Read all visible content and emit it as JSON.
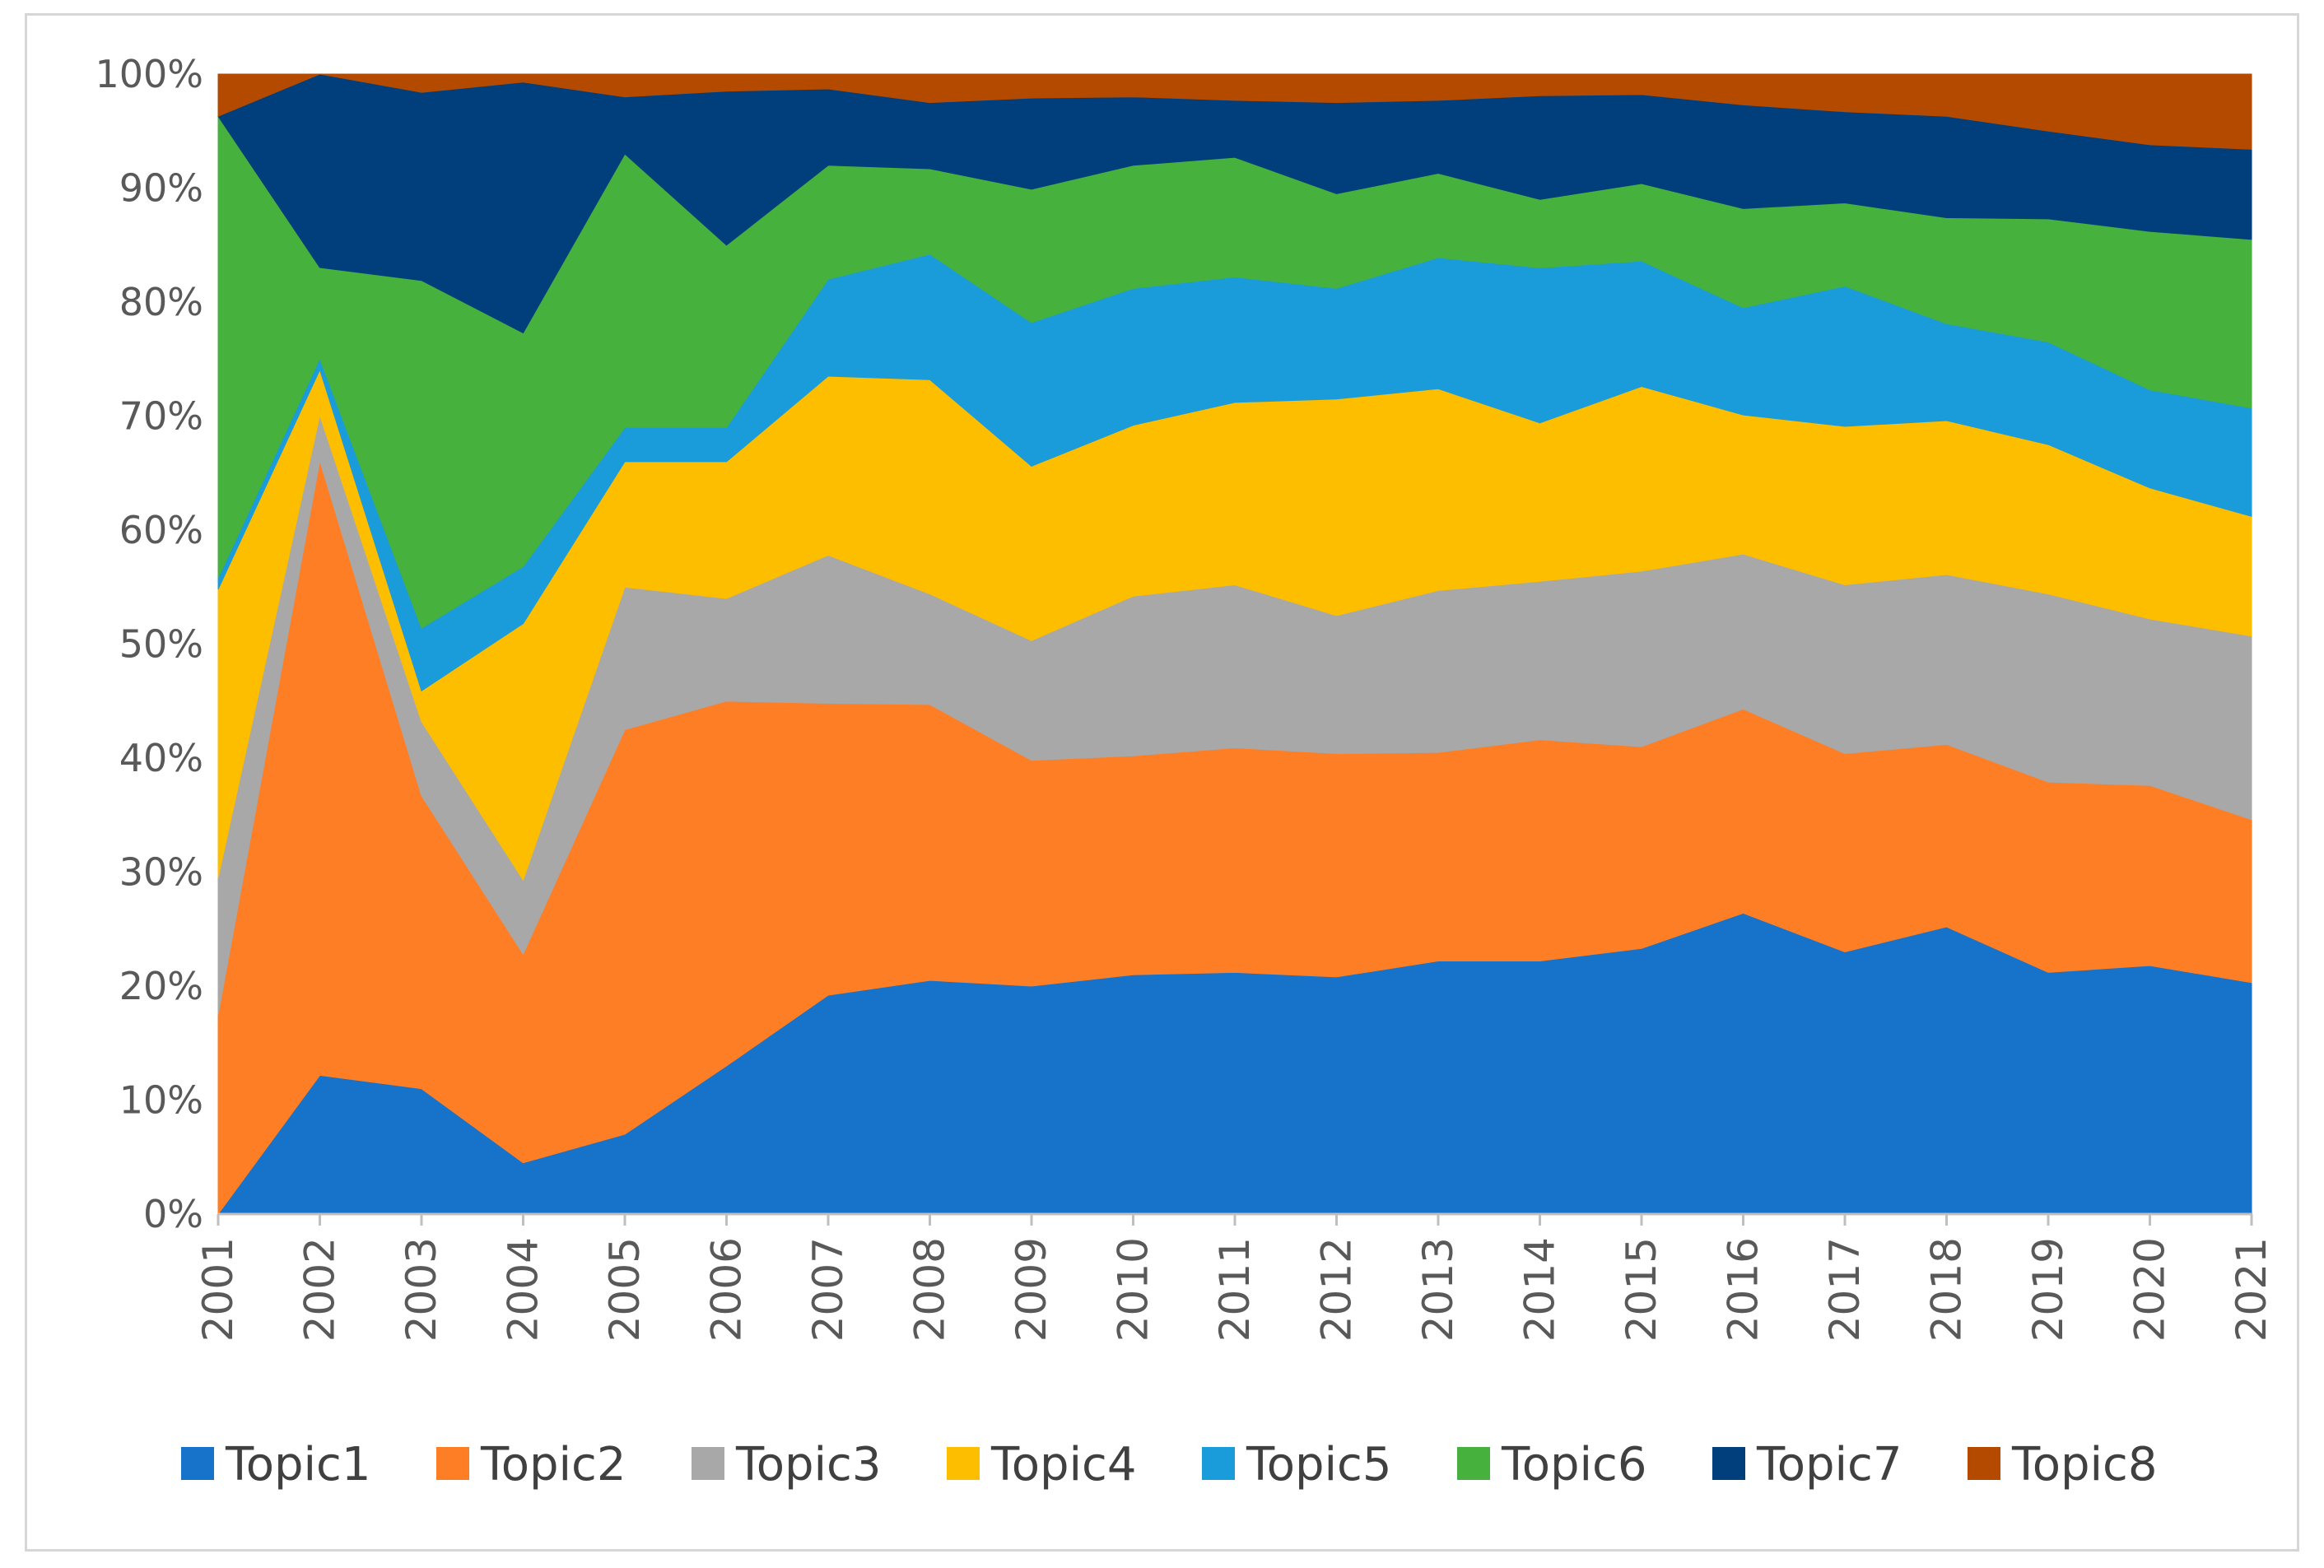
{
  "chart_data": {
    "type": "area",
    "stacked": "percent",
    "title": "",
    "xlabel": "",
    "ylabel": "",
    "categories": [
      "2001",
      "2002",
      "2003",
      "2004",
      "2005",
      "2006",
      "2007",
      "2008",
      "2009",
      "2010",
      "2011",
      "2012",
      "2013",
      "2014",
      "2015",
      "2016",
      "2017",
      "2018",
      "2019",
      "2020",
      "2021"
    ],
    "ylim": [
      0,
      100
    ],
    "yticks": [
      "0%",
      "10%",
      "20%",
      "30%",
      "40%",
      "50%",
      "60%",
      "70%",
      "80%",
      "90%",
      "100%"
    ],
    "grid": false,
    "legend": "bottom",
    "series": [
      {
        "name": "Topic1",
        "color": "#1772C9",
        "values": [
          0.0,
          12.2,
          11.0,
          4.5,
          7.0,
          13.0,
          19.2,
          20.5,
          20.0,
          21.0,
          21.2,
          20.8,
          22.2,
          22.2,
          23.3,
          26.4,
          23.0,
          25.2,
          21.2,
          21.8,
          20.3
        ]
      },
      {
        "name": "Topic2",
        "color": "#FE7E25",
        "values": [
          17.5,
          54.0,
          25.7,
          18.3,
          35.5,
          32.0,
          25.6,
          24.2,
          19.8,
          19.2,
          19.7,
          19.6,
          18.3,
          19.4,
          17.7,
          17.9,
          17.4,
          16.0,
          16.7,
          15.8,
          14.3
        ]
      },
      {
        "name": "Topic3",
        "color": "#A8A8A8",
        "values": [
          12.0,
          4.0,
          6.5,
          6.5,
          12.5,
          9.0,
          13.0,
          9.7,
          10.5,
          14.0,
          14.3,
          12.1,
          14.2,
          13.9,
          15.4,
          13.6,
          14.8,
          14.9,
          16.5,
          14.6,
          16.1
        ]
      },
      {
        "name": "Topic4",
        "color": "#FDBE00",
        "values": [
          25.3,
          4.0,
          2.7,
          22.5,
          11.0,
          12.0,
          15.7,
          18.8,
          15.3,
          15.0,
          16.0,
          19.0,
          17.7,
          13.9,
          16.2,
          12.2,
          13.9,
          13.5,
          13.1,
          11.5,
          10.5
        ]
      },
      {
        "name": "Topic5",
        "color": "#1A9CDA",
        "values": [
          1.0,
          1.0,
          5.5,
          5.0,
          3.0,
          3.0,
          8.5,
          11.0,
          12.6,
          12.0,
          11.0,
          9.7,
          11.5,
          13.6,
          11.0,
          9.4,
          12.3,
          8.5,
          9.0,
          8.6,
          9.5
        ]
      },
      {
        "name": "Topic6",
        "color": "#46B13D",
        "values": [
          40.5,
          8.0,
          30.5,
          20.5,
          24.0,
          16.0,
          10.0,
          7.5,
          11.7,
          10.8,
          10.5,
          8.3,
          7.4,
          6.0,
          6.8,
          8.7,
          7.3,
          9.3,
          10.8,
          13.9,
          14.8
        ]
      },
      {
        "name": "Topic7",
        "color": "#003F7B",
        "values": [
          0.0,
          17.0,
          16.5,
          22.0,
          5.0,
          13.5,
          6.7,
          5.8,
          8.0,
          6.0,
          5.0,
          8.0,
          6.4,
          9.1,
          7.8,
          9.1,
          8.0,
          8.9,
          7.7,
          7.6,
          7.9
        ]
      },
      {
        "name": "Topic8",
        "color": "#B34A00",
        "values": [
          3.7,
          0.0,
          1.6,
          0.7,
          2.0,
          1.5,
          1.3,
          2.5,
          2.1,
          2.0,
          2.3,
          2.5,
          2.3,
          1.9,
          1.8,
          2.7,
          3.3,
          3.7,
          5.0,
          6.2,
          6.6
        ]
      }
    ]
  }
}
